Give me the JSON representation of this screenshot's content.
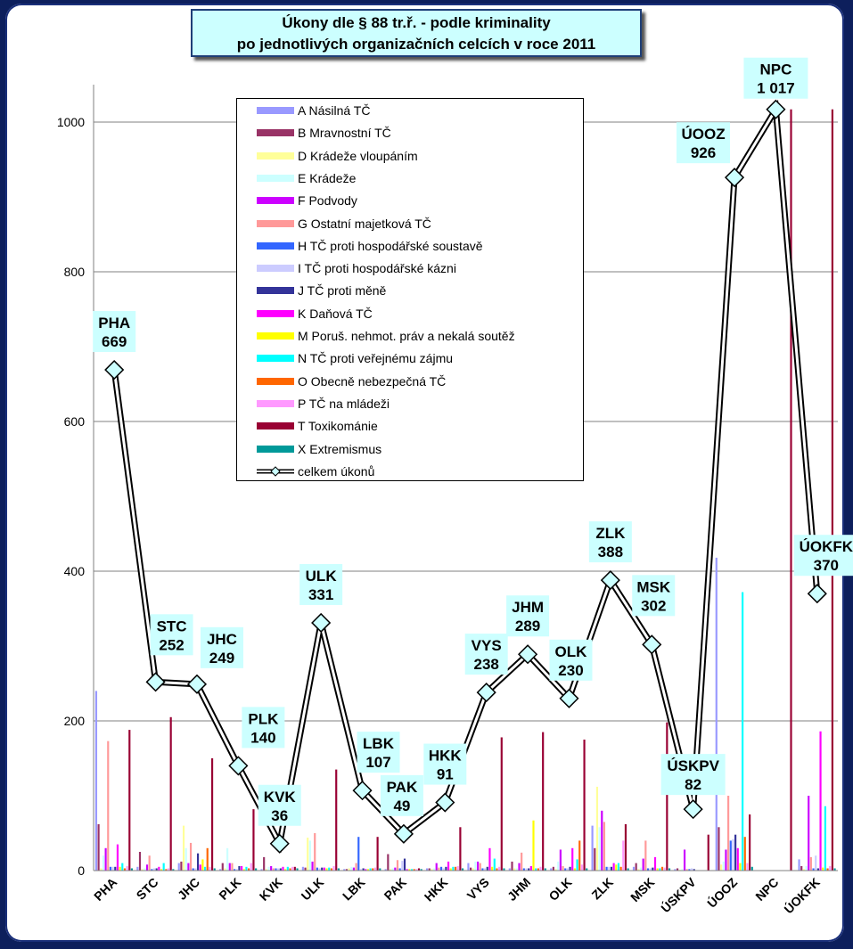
{
  "title": {
    "line1": "Úkony dle § 88 tr.ř. - podle kriminality",
    "line2": "po jednotlivých organizačních celcích v roce 2011"
  },
  "chart_data": {
    "type": "bar",
    "combo": "bar+line",
    "categories": [
      "PHA",
      "STC",
      "JHC",
      "PLK",
      "KVK",
      "ULK",
      "LBK",
      "PAK",
      "HKK",
      "VYS",
      "JHM",
      "OLK",
      "ZLK",
      "MSK",
      "ÚSKPV",
      "ÚOOZ",
      "NPC",
      "ÚOKFK"
    ],
    "ylim": [
      0,
      1050
    ],
    "yticks": [
      0,
      200,
      400,
      600,
      800,
      1000
    ],
    "grid": true,
    "legend_position": "top-center",
    "series": [
      {
        "name": "A Násilná TČ",
        "color": "#9999ff",
        "values": [
          240,
          5,
          10,
          2,
          2,
          5,
          2,
          2,
          3,
          10,
          3,
          3,
          60,
          5,
          2,
          418,
          0,
          15
        ]
      },
      {
        "name": " B Mravnostní TČ",
        "color": "#993366",
        "values": [
          62,
          25,
          12,
          10,
          18,
          4,
          2,
          22,
          3,
          4,
          12,
          5,
          30,
          10,
          3,
          58,
          0,
          6
        ]
      },
      {
        "name": "D Krádeže vloupáním",
        "color": "#ffff99",
        "values": [
          3,
          2,
          60,
          3,
          2,
          44,
          3,
          2,
          2,
          3,
          3,
          2,
          112,
          2,
          1,
          8,
          0,
          2
        ]
      },
      {
        "name": "E Krádeže",
        "color": "#ccffff",
        "values": [
          20,
          3,
          30,
          30,
          5,
          40,
          5,
          3,
          3,
          12,
          3,
          12,
          58,
          4,
          2,
          12,
          0,
          6
        ]
      },
      {
        "name": "F Podvody",
        "color": "#cc00ff",
        "values": [
          30,
          8,
          10,
          10,
          6,
          12,
          4,
          4,
          10,
          12,
          10,
          28,
          80,
          16,
          28,
          28,
          0,
          100
        ]
      },
      {
        "name": "G Ostatní majetková TČ",
        "color": "#ff9999",
        "values": [
          173,
          20,
          37,
          10,
          3,
          50,
          10,
          14,
          4,
          10,
          24,
          6,
          65,
          40,
          2,
          100,
          0,
          18
        ]
      },
      {
        "name": "H TČ proti hospodářské soustavě",
        "color": "#3366ff",
        "values": [
          5,
          2,
          3,
          2,
          3,
          4,
          45,
          3,
          5,
          3,
          3,
          3,
          5,
          3,
          2,
          40,
          0,
          3
        ]
      },
      {
        "name": "I TČ proti hospodářské kázni",
        "color": "#ccccff",
        "values": [
          5,
          3,
          3,
          2,
          3,
          3,
          2,
          13,
          3,
          3,
          3,
          3,
          5,
          3,
          3,
          42,
          0,
          20
        ]
      },
      {
        "name": "J TČ proti měně",
        "color": "#333399",
        "values": [
          5,
          3,
          23,
          6,
          3,
          4,
          3,
          16,
          5,
          5,
          3,
          5,
          5,
          4,
          2,
          48,
          0,
          3
        ]
      },
      {
        "name": "K Daňová TČ",
        "color": "#ff00ff",
        "values": [
          35,
          5,
          8,
          6,
          5,
          4,
          2,
          2,
          12,
          30,
          6,
          30,
          10,
          18,
          0,
          30,
          0,
          186
        ]
      },
      {
        "name": "M Poruš. nehmot. práv a nekalá soutěž",
        "color": "#ffff00",
        "values": [
          5,
          2,
          15,
          2,
          2,
          3,
          2,
          2,
          3,
          5,
          67,
          3,
          8,
          3,
          0,
          10,
          0,
          4
        ]
      },
      {
        "name": "N TČ proti veřejnému zájmu",
        "color": "#00ffff",
        "values": [
          10,
          10,
          5,
          5,
          5,
          4,
          3,
          2,
          5,
          16,
          3,
          15,
          10,
          3,
          0,
          372,
          0,
          86
        ]
      },
      {
        "name": "O Obecně nebezpečná TČ",
        "color": "#ff6600",
        "values": [
          3,
          2,
          30,
          3,
          3,
          3,
          3,
          2,
          5,
          3,
          3,
          40,
          5,
          5,
          0,
          45,
          0,
          3
        ]
      },
      {
        "name": "P TČ na mládeži",
        "color": "#ff99ff",
        "values": [
          6,
          3,
          5,
          10,
          5,
          6,
          4,
          2,
          6,
          5,
          5,
          8,
          40,
          4,
          0,
          10,
          0,
          6
        ]
      },
      {
        "name": "T Toxikománie",
        "color": "#990033",
        "values": [
          188,
          205,
          150,
          82,
          5,
          135,
          45,
          3,
          58,
          178,
          185,
          175,
          62,
          198,
          48,
          75,
          1017,
          1017
        ]
      },
      {
        "name": "X Extremismus",
        "color": "#009999",
        "values": [
          3,
          2,
          3,
          3,
          3,
          3,
          3,
          2,
          3,
          3,
          3,
          3,
          3,
          3,
          0,
          5,
          0,
          3
        ]
      }
    ],
    "line_series": {
      "name": "celkem úkonů",
      "values": [
        669,
        252,
        249,
        140,
        36,
        331,
        107,
        49,
        91,
        238,
        289,
        230,
        388,
        302,
        82,
        926,
        1017,
        370
      ],
      "labels": [
        "669",
        "252",
        "249",
        "140",
        "36",
        "331",
        "107",
        "49",
        "91",
        "238",
        "289",
        "230",
        "388",
        "302",
        "82",
        "926",
        "1 017",
        "370"
      ]
    }
  },
  "colors": {
    "background": "#0d1f5c",
    "label_box": "#ccffff",
    "grid": "#808080"
  }
}
